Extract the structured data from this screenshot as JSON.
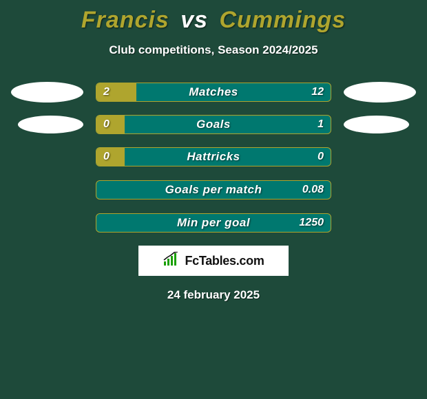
{
  "colors": {
    "page_bg": "#1e4a3a",
    "title_name": "#afa52e",
    "title_vs": "#ffffff",
    "bar_border": "#afa52e",
    "bar_bg": "#00786f",
    "bar_fill": "#afa52e",
    "ellipse_left_1": "#ffffff",
    "ellipse_right_1": "#ffffff",
    "ellipse_left_2": "#ffffff",
    "ellipse_right_2": "#ffffff",
    "logo_icon": "#1aa000"
  },
  "header": {
    "name1": "Francis",
    "vs": "vs",
    "name2": "Cummings",
    "subtitle": "Club competitions, Season 2024/2025"
  },
  "bars": [
    {
      "label": "Matches",
      "left": "2",
      "right": "12",
      "fill_pct": 17,
      "show_ellipses": true,
      "ellipse_small": false
    },
    {
      "label": "Goals",
      "left": "0",
      "right": "1",
      "fill_pct": 12,
      "show_ellipses": true,
      "ellipse_small": true
    },
    {
      "label": "Hattricks",
      "left": "0",
      "right": "0",
      "fill_pct": 12,
      "show_ellipses": false
    },
    {
      "label": "Goals per match",
      "left": "",
      "right": "0.08",
      "fill_pct": 0,
      "show_ellipses": false
    },
    {
      "label": "Min per goal",
      "left": "",
      "right": "1250",
      "fill_pct": 0,
      "show_ellipses": false
    }
  ],
  "logo": {
    "text": "FcTables.com"
  },
  "date": "24 february 2025"
}
